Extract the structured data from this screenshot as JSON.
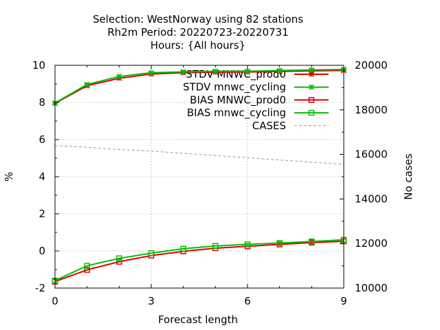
{
  "chart_data": {
    "type": "line",
    "title_lines": [
      "Selection: WestNorway using    82 stations",
      "Rh2m   Period: 20220723-20220731",
      "Hours: {All hours}"
    ],
    "xlabel": "Forecast length",
    "ylabel": "%",
    "y2label": "No cases",
    "xlim": [
      0,
      9
    ],
    "ylim": [
      -2,
      10
    ],
    "y2lim": [
      10000,
      20000
    ],
    "xticks": [
      "0",
      "3",
      "6",
      "9"
    ],
    "yticks": [
      "-2",
      "0",
      "2",
      "4",
      "6",
      "8",
      "10"
    ],
    "y2ticks": [
      "10000",
      "12000",
      "14000",
      "16000",
      "18000",
      "20000"
    ],
    "grid": true,
    "legend_position": "top-right",
    "x": [
      0,
      1,
      2,
      3,
      4,
      5,
      6,
      7,
      8,
      9
    ],
    "series": [
      {
        "name": "STDV MNWC_prod0",
        "axis": "y",
        "color": "#dd0000",
        "marker": "star",
        "values": [
          7.95,
          8.9,
          9.3,
          9.53,
          9.6,
          9.63,
          9.64,
          9.67,
          9.7,
          9.72
        ]
      },
      {
        "name": "STDV mnwc_cycling",
        "axis": "y",
        "color": "#00c000",
        "marker": "star",
        "values": [
          7.97,
          8.97,
          9.4,
          9.6,
          9.65,
          9.68,
          9.68,
          9.72,
          9.75,
          9.78
        ]
      },
      {
        "name": "BIAS MNWC_prod0",
        "axis": "y",
        "color": "#dd0000",
        "marker": "square",
        "values": [
          -1.65,
          -1.02,
          -0.58,
          -0.25,
          -0.02,
          0.15,
          0.25,
          0.35,
          0.45,
          0.52
        ]
      },
      {
        "name": "BIAS mnwc_cycling",
        "axis": "y",
        "color": "#00c000",
        "marker": "square",
        "values": [
          -1.6,
          -0.8,
          -0.4,
          -0.12,
          0.12,
          0.27,
          0.35,
          0.43,
          0.51,
          0.6
        ]
      },
      {
        "name": "CASES",
        "axis": "y2",
        "color": "#999999",
        "marker": "none",
        "dashed": true,
        "values": [
          16400,
          16320,
          16220,
          16150,
          16050,
          15950,
          15850,
          15750,
          15650,
          15550
        ]
      }
    ]
  }
}
